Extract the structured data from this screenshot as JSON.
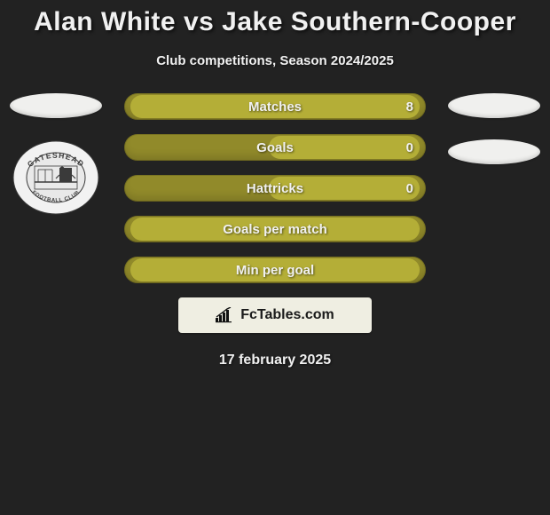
{
  "colors": {
    "page_bg": "#222222",
    "text": "#f1f1f1",
    "oval": "#f0f0ee",
    "bar_bg": "#918a2a",
    "bar_fill": "#b4ae37",
    "brand_bg": "#efeee2",
    "brand_text": "#1a1a1a",
    "brand_icon": "#111111",
    "badge_outer": "#f2f2f2",
    "badge_inner": "#e9e9e9",
    "badge_stroke": "#3a3a3a"
  },
  "title": "Alan White vs Jake Southern-Cooper",
  "subtitle": "Club competitions, Season 2024/2025",
  "date": "17 february 2025",
  "brand": {
    "text": "FcTables.com"
  },
  "left_player": {
    "oval_count": 1,
    "club_name": "GATESHEAD",
    "club_sub": "FOOTBALL CLUB"
  },
  "right_player": {
    "oval_count": 2
  },
  "bars": [
    {
      "label": "Matches",
      "value_right": "8",
      "fill_start_pct": 2,
      "fill_end_pct": 98,
      "show_value": true
    },
    {
      "label": "Goals",
      "value_right": "0",
      "fill_start_pct": 48,
      "fill_end_pct": 98,
      "show_value": true
    },
    {
      "label": "Hattricks",
      "value_right": "0",
      "fill_start_pct": 48,
      "fill_end_pct": 98,
      "show_value": true
    },
    {
      "label": "Goals per match",
      "value_right": "",
      "fill_start_pct": 2,
      "fill_end_pct": 98,
      "show_value": false
    },
    {
      "label": "Min per goal",
      "value_right": "",
      "fill_start_pct": 2,
      "fill_end_pct": 98,
      "show_value": false
    }
  ],
  "typography": {
    "title_fontsize": 30,
    "subtitle_fontsize": 15,
    "bar_label_fontsize": 15,
    "date_fontsize": 16
  }
}
